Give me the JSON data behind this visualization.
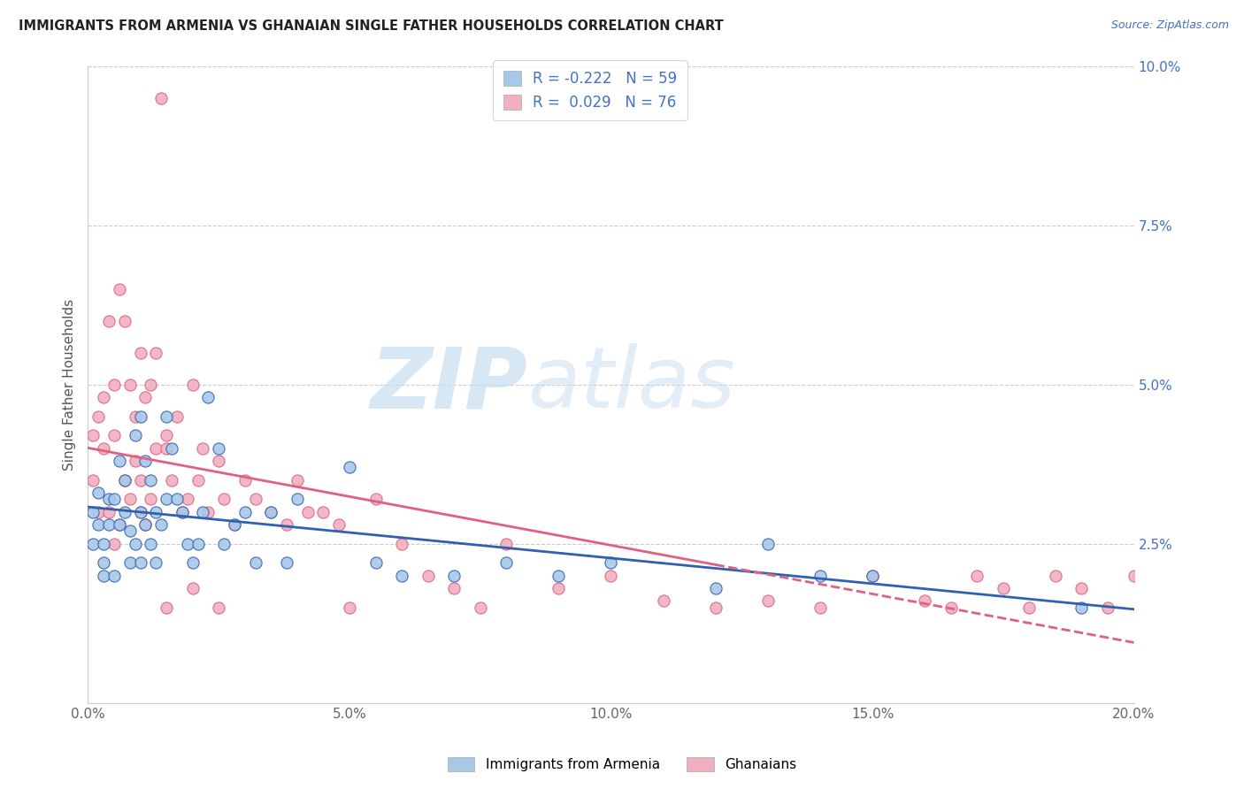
{
  "title": "IMMIGRANTS FROM ARMENIA VS GHANAIAN SINGLE FATHER HOUSEHOLDS CORRELATION CHART",
  "source": "Source: ZipAtlas.com",
  "ylabel": "Single Father Households",
  "xlim": [
    0.0,
    0.2
  ],
  "ylim": [
    0.0,
    0.1
  ],
  "xticks": [
    0.0,
    0.05,
    0.1,
    0.15,
    0.2
  ],
  "xtick_labels": [
    "0.0%",
    "5.0%",
    "10.0%",
    "15.0%",
    "20.0%"
  ],
  "yticks": [
    0.025,
    0.05,
    0.075,
    0.1
  ],
  "ytick_labels": [
    "2.5%",
    "5.0%",
    "7.5%",
    "10.0%"
  ],
  "color_armenia": "#a8c8e8",
  "color_ghanaian": "#f0b0c0",
  "color_line_armenia": "#3060b0",
  "color_line_ghanaian": "#e06080",
  "background_color": "#ffffff",
  "grid_color": "#cccccc",
  "armenia_x": [
    0.001,
    0.001,
    0.002,
    0.002,
    0.003,
    0.003,
    0.003,
    0.004,
    0.004,
    0.005,
    0.005,
    0.006,
    0.006,
    0.007,
    0.007,
    0.008,
    0.008,
    0.009,
    0.009,
    0.01,
    0.01,
    0.01,
    0.011,
    0.011,
    0.012,
    0.012,
    0.013,
    0.013,
    0.014,
    0.015,
    0.015,
    0.016,
    0.017,
    0.018,
    0.019,
    0.02,
    0.021,
    0.022,
    0.023,
    0.025,
    0.026,
    0.028,
    0.03,
    0.032,
    0.035,
    0.038,
    0.04,
    0.05,
    0.055,
    0.06,
    0.07,
    0.08,
    0.09,
    0.1,
    0.12,
    0.13,
    0.14,
    0.15,
    0.19
  ],
  "armenia_y": [
    0.03,
    0.025,
    0.033,
    0.028,
    0.025,
    0.022,
    0.02,
    0.032,
    0.028,
    0.032,
    0.02,
    0.028,
    0.038,
    0.03,
    0.035,
    0.027,
    0.022,
    0.042,
    0.025,
    0.03,
    0.045,
    0.022,
    0.028,
    0.038,
    0.035,
    0.025,
    0.03,
    0.022,
    0.028,
    0.045,
    0.032,
    0.04,
    0.032,
    0.03,
    0.025,
    0.022,
    0.025,
    0.03,
    0.048,
    0.04,
    0.025,
    0.028,
    0.03,
    0.022,
    0.03,
    0.022,
    0.032,
    0.037,
    0.022,
    0.02,
    0.02,
    0.022,
    0.02,
    0.022,
    0.018,
    0.025,
    0.02,
    0.02,
    0.015
  ],
  "ghanaian_x": [
    0.001,
    0.001,
    0.002,
    0.002,
    0.003,
    0.003,
    0.004,
    0.004,
    0.005,
    0.005,
    0.006,
    0.006,
    0.007,
    0.007,
    0.008,
    0.008,
    0.009,
    0.009,
    0.01,
    0.01,
    0.011,
    0.011,
    0.012,
    0.012,
    0.013,
    0.013,
    0.014,
    0.015,
    0.015,
    0.016,
    0.017,
    0.018,
    0.019,
    0.02,
    0.021,
    0.022,
    0.023,
    0.025,
    0.026,
    0.028,
    0.03,
    0.032,
    0.035,
    0.038,
    0.04,
    0.042,
    0.045,
    0.048,
    0.05,
    0.055,
    0.06,
    0.065,
    0.07,
    0.075,
    0.08,
    0.09,
    0.1,
    0.11,
    0.12,
    0.13,
    0.14,
    0.15,
    0.16,
    0.165,
    0.17,
    0.175,
    0.18,
    0.185,
    0.19,
    0.195,
    0.2,
    0.005,
    0.01,
    0.015,
    0.02,
    0.025
  ],
  "ghanaian_y": [
    0.035,
    0.042,
    0.03,
    0.045,
    0.04,
    0.048,
    0.03,
    0.06,
    0.05,
    0.042,
    0.028,
    0.065,
    0.035,
    0.06,
    0.032,
    0.05,
    0.038,
    0.045,
    0.03,
    0.055,
    0.028,
    0.048,
    0.032,
    0.05,
    0.04,
    0.055,
    0.095,
    0.042,
    0.04,
    0.035,
    0.045,
    0.03,
    0.032,
    0.05,
    0.035,
    0.04,
    0.03,
    0.038,
    0.032,
    0.028,
    0.035,
    0.032,
    0.03,
    0.028,
    0.035,
    0.03,
    0.03,
    0.028,
    0.015,
    0.032,
    0.025,
    0.02,
    0.018,
    0.015,
    0.025,
    0.018,
    0.02,
    0.016,
    0.015,
    0.016,
    0.015,
    0.02,
    0.016,
    0.015,
    0.02,
    0.018,
    0.015,
    0.02,
    0.018,
    0.015,
    0.02,
    0.025,
    0.035,
    0.015,
    0.018,
    0.015
  ]
}
